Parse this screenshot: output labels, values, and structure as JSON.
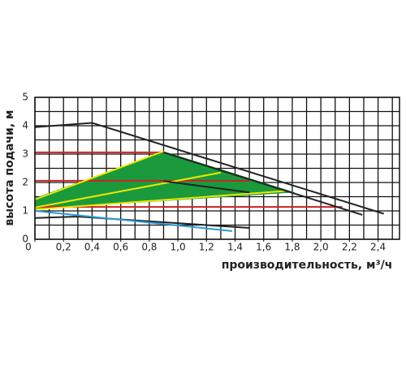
{
  "chart_data": {
    "type": "line",
    "x_label": "производительность, м³/ч",
    "y_label": "высота подачи, м",
    "xlim": [
      0,
      2.55
    ],
    "ylim": [
      0,
      5
    ],
    "xticks": [
      0,
      {
        "value": 0.2,
        "label": "0,2"
      },
      {
        "value": 0.4,
        "label": "0,4"
      },
      {
        "value": 0.6,
        "label": "0,6"
      },
      {
        "value": 0.8,
        "label": "0,8"
      },
      {
        "value": 1.0,
        "label": "1,0"
      },
      {
        "value": 1.2,
        "label": "1,2"
      },
      {
        "value": 1.4,
        "label": "1,4"
      },
      {
        "value": 1.6,
        "label": "1,6"
      },
      {
        "value": 1.8,
        "label": "1,8"
      },
      {
        "value": 2.0,
        "label": "2,0"
      },
      {
        "value": 2.2,
        "label": "2,2"
      },
      {
        "value": 2.4,
        "label": "2,4"
      }
    ],
    "yticks": [
      0,
      1,
      2,
      3,
      4,
      5
    ],
    "grid": true,
    "xgrid_step": 0.1,
    "ygrid_step": 0.5,
    "series": [
      {
        "color": "#1a9a3c",
        "fill": true,
        "x": [
          0,
          0.9,
          1.82,
          0
        ],
        "values": [
          1.45,
          3.1,
          1.65,
          1.05
        ]
      },
      {
        "color": "#cc2222",
        "x": [
          0,
          0.9
        ],
        "values": [
          3.06,
          3.06
        ]
      },
      {
        "color": "#cc2222",
        "x": [
          0,
          1.5
        ],
        "values": [
          2.06,
          2.06
        ]
      },
      {
        "color": "#cc2222",
        "x": [
          0,
          2.15
        ],
        "values": [
          1.14,
          1.14
        ]
      },
      {
        "color": "#f2e600",
        "x": [
          0,
          0.9
        ],
        "values": [
          1.4,
          3.1
        ]
      },
      {
        "color": "#f2e600",
        "x": [
          0,
          1.3
        ],
        "values": [
          1.12,
          2.35
        ]
      },
      {
        "color": "#f2e600",
        "x": [
          0,
          1.75
        ],
        "values": [
          1.05,
          1.7
        ]
      },
      {
        "color": "#222222",
        "x": [
          0,
          0.4,
          2.44
        ],
        "values": [
          3.95,
          4.1,
          0.9
        ]
      },
      {
        "color": "#222222",
        "x": [
          0.9,
          2.29
        ],
        "values": [
          3.06,
          0.86
        ]
      },
      {
        "color": "#222222",
        "x": [
          0.9,
          1.5
        ],
        "values": [
          2.05,
          1.65
        ]
      },
      {
        "color": "#222222",
        "x": [
          0,
          0.3,
          1.5
        ],
        "values": [
          0.75,
          0.8,
          0.4
        ]
      },
      {
        "color": "#2a9ad8",
        "x": [
          0,
          1.38
        ],
        "values": [
          1.0,
          0.29
        ]
      }
    ]
  }
}
